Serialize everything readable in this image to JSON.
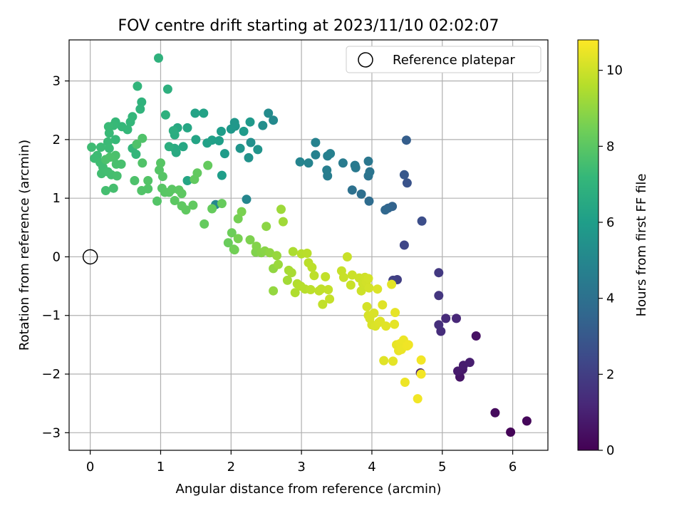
{
  "chart_data": {
    "type": "scatter",
    "title": "FOV centre drift starting at 2023/11/10 02:02:07",
    "xlabel": "Angular distance from reference (arcmin)",
    "ylabel": "Rotation from reference (arcmin)",
    "xlim": [
      -0.3,
      6.5
    ],
    "ylim": [
      -3.3,
      3.7
    ],
    "xticks": [
      0,
      1,
      2,
      3,
      4,
      5,
      6
    ],
    "yticks": [
      -3,
      -2,
      -1,
      0,
      1,
      2,
      3
    ],
    "grid": true,
    "legend": {
      "position": "top-right",
      "entries": [
        "Reference platepar"
      ]
    },
    "reference_point": {
      "x": 0,
      "y": 0
    },
    "colorbar": {
      "label": "Hours from first FF file",
      "colormap": "viridis",
      "range": [
        0,
        10.8
      ],
      "ticks": [
        0,
        2,
        4,
        6,
        8,
        10
      ]
    },
    "colormap_stops": [
      "#440154",
      "#482878",
      "#3e4989",
      "#31688e",
      "#26828e",
      "#1f9e89",
      "#35b779",
      "#6ece58",
      "#b5de2b",
      "#fde725"
    ],
    "series": [
      {
        "points": [
          [
            5.97,
            -2.99,
            0.1
          ],
          [
            6.2,
            -2.8,
            0.2
          ],
          [
            5.75,
            -2.66,
            0.3
          ],
          [
            5.48,
            -1.35,
            0.5
          ],
          [
            5.25,
            -2.05,
            0.6
          ],
          [
            5.29,
            -1.92,
            0.7
          ],
          [
            5.22,
            -1.95,
            0.8
          ],
          [
            5.3,
            -1.85,
            0.85
          ],
          [
            5.39,
            -1.8,
            0.9
          ],
          [
            4.69,
            -1.98,
            1.0
          ],
          [
            5.2,
            -1.05,
            1.2
          ],
          [
            5.05,
            -1.05,
            1.3
          ],
          [
            4.98,
            -1.27,
            1.4
          ],
          [
            4.95,
            -1.16,
            1.5
          ],
          [
            4.95,
            -0.66,
            1.7
          ],
          [
            4.95,
            -0.27,
            1.8
          ],
          [
            4.36,
            -0.39,
            2.0
          ],
          [
            4.3,
            -0.4,
            2.1
          ],
          [
            4.46,
            0.2,
            2.3
          ],
          [
            4.71,
            0.61,
            2.6
          ],
          [
            4.5,
            1.26,
            2.8
          ],
          [
            4.46,
            1.4,
            3.0
          ],
          [
            4.49,
            1.99,
            3.2
          ],
          [
            4.29,
            0.86,
            3.4
          ],
          [
            4.23,
            0.83,
            3.5
          ],
          [
            4.19,
            0.8,
            3.6
          ],
          [
            3.96,
            0.95,
            3.8
          ],
          [
            3.85,
            1.07,
            3.9
          ],
          [
            3.72,
            1.14,
            4.0
          ],
          [
            3.95,
            1.38,
            4.1
          ],
          [
            3.97,
            1.45,
            4.2
          ],
          [
            3.95,
            1.63,
            4.3
          ],
          [
            3.77,
            1.52,
            4.4
          ],
          [
            3.76,
            1.56,
            4.45
          ],
          [
            3.59,
            1.6,
            4.5
          ],
          [
            3.37,
            1.38,
            4.55
          ],
          [
            3.36,
            1.48,
            4.6
          ],
          [
            3.37,
            1.72,
            4.65
          ],
          [
            3.41,
            1.76,
            4.7
          ],
          [
            3.2,
            1.74,
            4.75
          ],
          [
            3.2,
            1.95,
            4.8
          ],
          [
            3.1,
            1.6,
            4.85
          ],
          [
            2.98,
            1.62,
            4.9
          ],
          [
            2.22,
            0.98,
            4.95
          ],
          [
            1.78,
            0.89,
            5.0
          ],
          [
            2.6,
            2.33,
            5.1
          ],
          [
            2.53,
            2.45,
            5.2
          ],
          [
            2.45,
            2.24,
            5.3
          ],
          [
            2.28,
            1.95,
            5.4
          ],
          [
            2.25,
            1.69,
            5.5
          ],
          [
            2.38,
            1.83,
            5.55
          ],
          [
            2.13,
            1.85,
            5.6
          ],
          [
            2.06,
            2.23,
            5.65
          ],
          [
            2.05,
            2.29,
            5.7
          ],
          [
            2.0,
            2.18,
            5.75
          ],
          [
            2.27,
            2.3,
            5.8
          ],
          [
            2.18,
            2.14,
            5.85
          ],
          [
            1.91,
            1.76,
            5.9
          ],
          [
            1.86,
            2.14,
            5.95
          ],
          [
            1.87,
            1.39,
            6.0
          ],
          [
            1.83,
            1.98,
            6.05
          ],
          [
            1.73,
            1.99,
            6.1
          ],
          [
            1.66,
            1.94,
            6.15
          ],
          [
            1.61,
            2.45,
            6.2
          ],
          [
            1.49,
            2.45,
            6.25
          ],
          [
            1.5,
            2.0,
            6.3
          ],
          [
            1.38,
            1.3,
            6.35
          ],
          [
            1.38,
            2.2,
            6.4
          ],
          [
            1.32,
            1.88,
            6.45
          ],
          [
            1.24,
            2.2,
            6.5
          ],
          [
            1.22,
            1.78,
            6.55
          ],
          [
            1.2,
            1.85,
            6.6
          ],
          [
            1.2,
            2.08,
            6.65
          ],
          [
            1.18,
            2.15,
            6.7
          ],
          [
            1.12,
            1.88,
            6.75
          ],
          [
            1.1,
            2.86,
            6.8
          ],
          [
            1.07,
            2.42,
            6.85
          ],
          [
            0.97,
            3.39,
            6.9
          ],
          [
            0.73,
            2.64,
            6.95
          ],
          [
            0.71,
            2.52,
            7.0
          ],
          [
            0.67,
            2.91,
            7.05
          ],
          [
            0.65,
            1.75,
            7.1
          ],
          [
            0.6,
            1.85,
            7.12
          ],
          [
            0.6,
            2.39,
            7.14
          ],
          [
            0.57,
            2.3,
            7.16
          ],
          [
            0.53,
            2.17,
            7.18
          ],
          [
            0.45,
            2.22,
            7.2
          ],
          [
            0.36,
            2.3,
            7.22
          ],
          [
            0.36,
            2.0,
            7.24
          ],
          [
            0.33,
            2.24,
            7.26
          ],
          [
            0.27,
            2.11,
            7.28
          ],
          [
            0.26,
            2.22,
            7.3
          ],
          [
            0.25,
            1.96,
            7.32
          ],
          [
            0.27,
            1.85,
            7.34
          ],
          [
            0.15,
            1.87,
            7.36
          ],
          [
            0.1,
            1.73,
            7.38
          ],
          [
            0.06,
            1.68,
            7.4
          ],
          [
            0.02,
            1.87,
            7.42
          ],
          [
            0.14,
            1.61,
            7.44
          ],
          [
            0.18,
            1.53,
            7.46
          ],
          [
            0.16,
            1.42,
            7.48
          ],
          [
            0.25,
            1.45,
            7.5
          ],
          [
            0.3,
            1.4,
            7.52
          ],
          [
            0.22,
            1.13,
            7.54
          ],
          [
            0.33,
            1.17,
            7.56
          ],
          [
            0.38,
            1.38,
            7.58
          ],
          [
            0.44,
            1.58,
            7.6
          ],
          [
            0.37,
            1.58,
            7.62
          ],
          [
            0.33,
            1.7,
            7.64
          ],
          [
            0.36,
            1.73,
            7.66
          ],
          [
            0.22,
            1.66,
            7.68
          ],
          [
            0.28,
            1.7,
            7.7
          ],
          [
            0.63,
            1.3,
            7.72
          ],
          [
            0.66,
            1.92,
            7.74
          ],
          [
            0.74,
            2.02,
            7.76
          ],
          [
            0.74,
            1.6,
            7.78
          ],
          [
            0.73,
            1.13,
            7.8
          ],
          [
            0.82,
            1.16,
            7.82
          ],
          [
            0.82,
            1.3,
            7.84
          ],
          [
            0.95,
            0.95,
            7.86
          ],
          [
            0.98,
            1.48,
            7.88
          ],
          [
            1.03,
            1.37,
            7.9
          ],
          [
            1.0,
            1.6,
            7.92
          ],
          [
            1.02,
            1.17,
            7.94
          ],
          [
            1.06,
            1.1,
            7.96
          ],
          [
            1.12,
            1.1,
            7.98
          ],
          [
            1.16,
            1.15,
            8.0
          ],
          [
            1.2,
            0.96,
            8.02
          ],
          [
            1.26,
            1.14,
            8.04
          ],
          [
            1.3,
            1.08,
            8.06
          ],
          [
            1.3,
            0.87,
            8.08
          ],
          [
            1.36,
            0.8,
            8.1
          ],
          [
            1.46,
            0.88,
            8.12
          ],
          [
            1.48,
            1.32,
            8.14
          ],
          [
            1.52,
            1.43,
            8.16
          ],
          [
            1.62,
            0.56,
            8.18
          ],
          [
            1.67,
            1.56,
            8.2
          ],
          [
            1.73,
            0.82,
            8.22
          ],
          [
            1.87,
            0.91,
            8.24
          ],
          [
            1.96,
            0.24,
            8.3
          ],
          [
            2.01,
            0.41,
            8.35
          ],
          [
            2.04,
            0.13,
            8.4
          ],
          [
            2.05,
            0.12,
            8.45
          ],
          [
            2.1,
            0.65,
            8.5
          ],
          [
            2.1,
            0.31,
            8.55
          ],
          [
            2.15,
            0.77,
            8.6
          ],
          [
            2.27,
            0.29,
            8.65
          ],
          [
            2.35,
            0.08,
            8.7
          ],
          [
            2.36,
            0.18,
            8.75
          ],
          [
            2.43,
            0.07,
            8.8
          ],
          [
            2.48,
            0.1,
            8.85
          ],
          [
            2.5,
            0.52,
            8.9
          ],
          [
            2.55,
            0.07,
            8.95
          ],
          [
            2.6,
            -0.2,
            9.0
          ],
          [
            2.6,
            -0.58,
            9.05
          ],
          [
            2.65,
            0.02,
            9.1
          ],
          [
            2.67,
            -0.13,
            9.15
          ],
          [
            2.71,
            0.81,
            9.2
          ],
          [
            2.74,
            0.6,
            9.25
          ],
          [
            2.8,
            -0.4,
            9.3
          ],
          [
            2.82,
            -0.23,
            9.35
          ],
          [
            2.86,
            -0.27,
            9.4
          ],
          [
            2.88,
            0.09,
            9.45
          ],
          [
            2.91,
            -0.61,
            9.5
          ],
          [
            2.94,
            -0.46,
            9.55
          ],
          [
            2.99,
            -0.5,
            9.6
          ],
          [
            3.0,
            0.05,
            9.62
          ],
          [
            3.05,
            -0.55,
            9.64
          ],
          [
            3.08,
            0.06,
            9.66
          ],
          [
            3.1,
            -0.1,
            9.68
          ],
          [
            3.13,
            -0.56,
            9.7
          ],
          [
            3.15,
            -0.18,
            9.72
          ],
          [
            3.18,
            -0.32,
            9.74
          ],
          [
            3.25,
            -0.58,
            9.76
          ],
          [
            3.28,
            -0.55,
            9.78
          ],
          [
            3.3,
            -0.81,
            9.8
          ],
          [
            3.34,
            -0.34,
            9.82
          ],
          [
            3.38,
            -0.56,
            9.84
          ],
          [
            3.4,
            -0.72,
            9.86
          ],
          [
            3.57,
            -0.24,
            9.88
          ],
          [
            3.6,
            -0.35,
            9.9
          ],
          [
            3.65,
            0.0,
            9.92
          ],
          [
            3.7,
            -0.48,
            9.94
          ],
          [
            3.72,
            -0.31,
            9.96
          ],
          [
            3.82,
            -0.36,
            9.98
          ],
          [
            3.85,
            -0.58,
            10.0
          ],
          [
            3.87,
            -0.45,
            10.02
          ],
          [
            3.9,
            -0.35,
            10.04
          ],
          [
            3.92,
            -0.43,
            10.06
          ],
          [
            3.95,
            -0.37,
            10.08
          ],
          [
            3.96,
            -0.53,
            10.1
          ],
          [
            3.93,
            -0.85,
            10.12
          ],
          [
            3.95,
            -1.0,
            10.14
          ],
          [
            3.97,
            -1.05,
            10.16
          ],
          [
            4.0,
            -1.16,
            10.18
          ],
          [
            4.03,
            -0.96,
            10.2
          ],
          [
            4.05,
            -1.18,
            10.22
          ],
          [
            4.08,
            -0.55,
            10.24
          ],
          [
            4.1,
            -1.12,
            10.26
          ],
          [
            4.12,
            -1.1,
            10.28
          ],
          [
            4.15,
            -0.82,
            10.3
          ],
          [
            4.17,
            -1.77,
            10.32
          ],
          [
            4.2,
            -1.18,
            10.34
          ],
          [
            4.28,
            -0.47,
            10.36
          ],
          [
            4.3,
            -1.78,
            10.38
          ],
          [
            4.32,
            -1.15,
            10.4
          ],
          [
            4.33,
            -0.95,
            10.42
          ],
          [
            4.35,
            -1.5,
            10.44
          ],
          [
            4.38,
            -1.6,
            10.46
          ],
          [
            4.4,
            -1.48,
            10.48
          ],
          [
            4.42,
            -1.58,
            10.5
          ],
          [
            4.45,
            -1.42,
            10.52
          ],
          [
            4.47,
            -2.14,
            10.54
          ],
          [
            4.5,
            -1.52,
            10.56
          ],
          [
            4.52,
            -1.5,
            10.58
          ],
          [
            4.65,
            -2.42,
            10.6
          ],
          [
            4.7,
            -1.76,
            10.62
          ],
          [
            4.7,
            -2.0,
            10.64
          ]
        ]
      }
    ]
  }
}
